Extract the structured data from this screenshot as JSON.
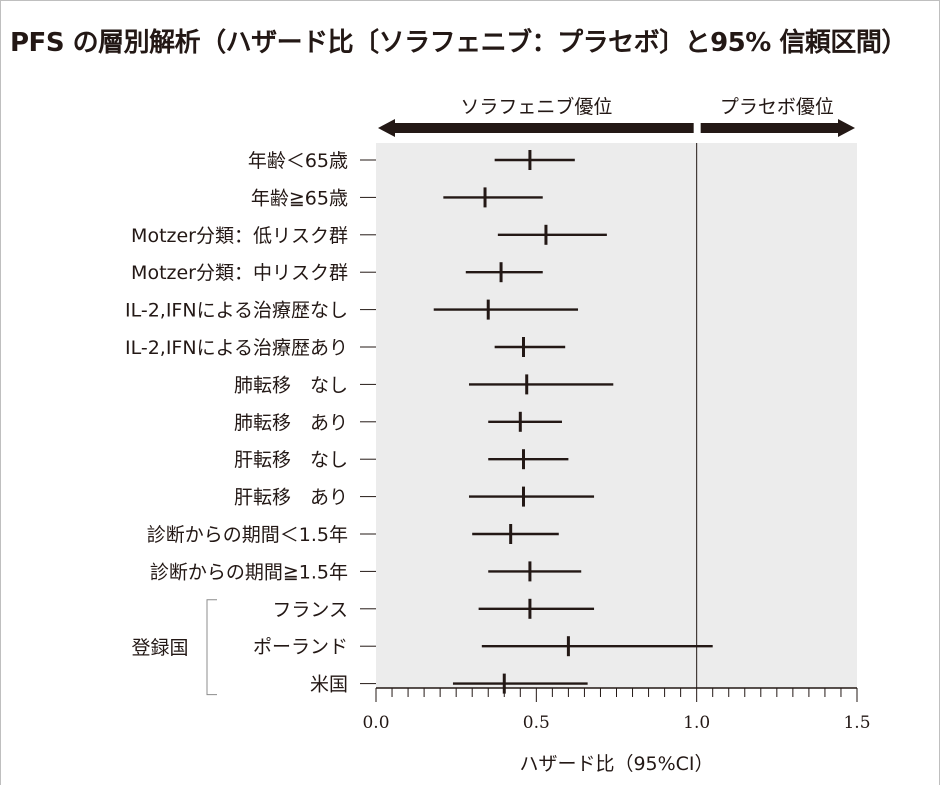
{
  "title": "PFS の層別解析（ハザード比〔ソラフェニブ：プラセボ〕と95% 信頼区間）",
  "chart_data": {
    "type": "forest",
    "title": "PFS の層別解析（ハザード比〔ソラフェニブ：プラセボ〕と95% 信頼区間）",
    "xlabel": "ハザード比（95%CI）",
    "xlim": [
      0.0,
      1.5
    ],
    "xticks": [
      "0.0",
      "0.5",
      "1.0",
      "1.5"
    ],
    "reference_line": 1.0,
    "direction_labels": {
      "left": "ソラフェニブ優位",
      "right": "プラセボ優位"
    },
    "group_label": "登録国",
    "rows": [
      {
        "label": "年齢＜65歳",
        "hr": 0.48,
        "lo": 0.37,
        "hi": 0.62
      },
      {
        "label": "年齢≧65歳",
        "hr": 0.34,
        "lo": 0.21,
        "hi": 0.52
      },
      {
        "label": "Motzer分類：低リスク群",
        "hr": 0.53,
        "lo": 0.38,
        "hi": 0.72
      },
      {
        "label": "Motzer分類：中リスク群",
        "hr": 0.39,
        "lo": 0.28,
        "hi": 0.52
      },
      {
        "label": "IL-2,IFNによる治療歴なし",
        "hr": 0.35,
        "lo": 0.18,
        "hi": 0.63
      },
      {
        "label": "IL-2,IFNによる治療歴あり",
        "hr": 0.46,
        "lo": 0.37,
        "hi": 0.59
      },
      {
        "label": "肺転移　なし",
        "hr": 0.47,
        "lo": 0.29,
        "hi": 0.74
      },
      {
        "label": "肺転移　あり",
        "hr": 0.45,
        "lo": 0.35,
        "hi": 0.58
      },
      {
        "label": "肝転移　なし",
        "hr": 0.46,
        "lo": 0.35,
        "hi": 0.6
      },
      {
        "label": "肝転移　あり",
        "hr": 0.46,
        "lo": 0.29,
        "hi": 0.68
      },
      {
        "label": "診断からの期間＜1.5年",
        "hr": 0.42,
        "lo": 0.3,
        "hi": 0.57
      },
      {
        "label": "診断からの期間≧1.5年",
        "hr": 0.48,
        "lo": 0.35,
        "hi": 0.64
      },
      {
        "label": "フランス",
        "hr": 0.48,
        "lo": 0.32,
        "hi": 0.68
      },
      {
        "label": "ポーランド",
        "hr": 0.6,
        "lo": 0.33,
        "hi": 1.05
      },
      {
        "label": "米国",
        "hr": 0.4,
        "lo": 0.24,
        "hi": 0.66
      }
    ],
    "grouped_rows": [
      12,
      13,
      14
    ],
    "background_color": "#ececec",
    "line_color": "#231815"
  }
}
